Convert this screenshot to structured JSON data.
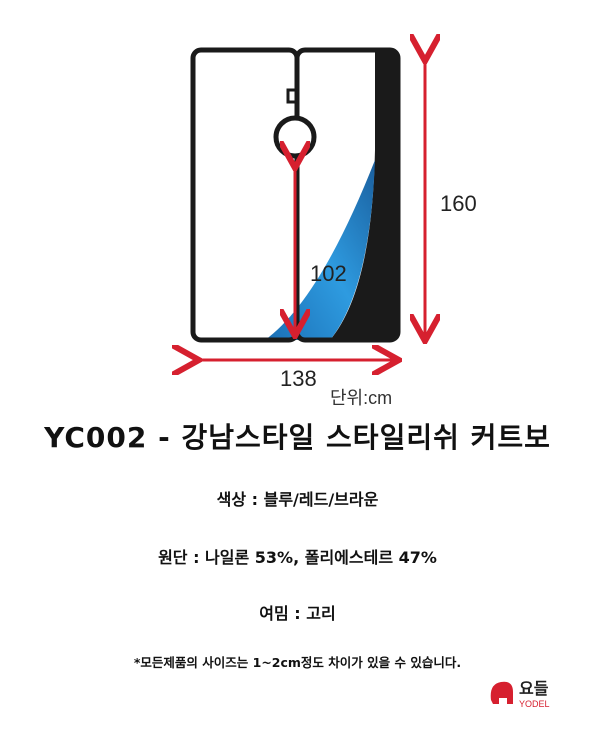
{
  "diagram": {
    "height": 160,
    "inner_height": 102,
    "width": 138,
    "unit": "단위:cm"
  },
  "title": "YC002 - 강남스타일 스타일리쉬 커트보",
  "specs": [
    "색상 : 블루/레드/브라운",
    "원단 : 나일론 53%, 폴리에스테르 47%",
    "여밈 : 고리"
  ],
  "note": "*모든제품의 사이즈는 1~2cm정도 차이가 있을 수 있습니다.",
  "logo": {
    "name": "요들",
    "sub": "YODEL"
  }
}
